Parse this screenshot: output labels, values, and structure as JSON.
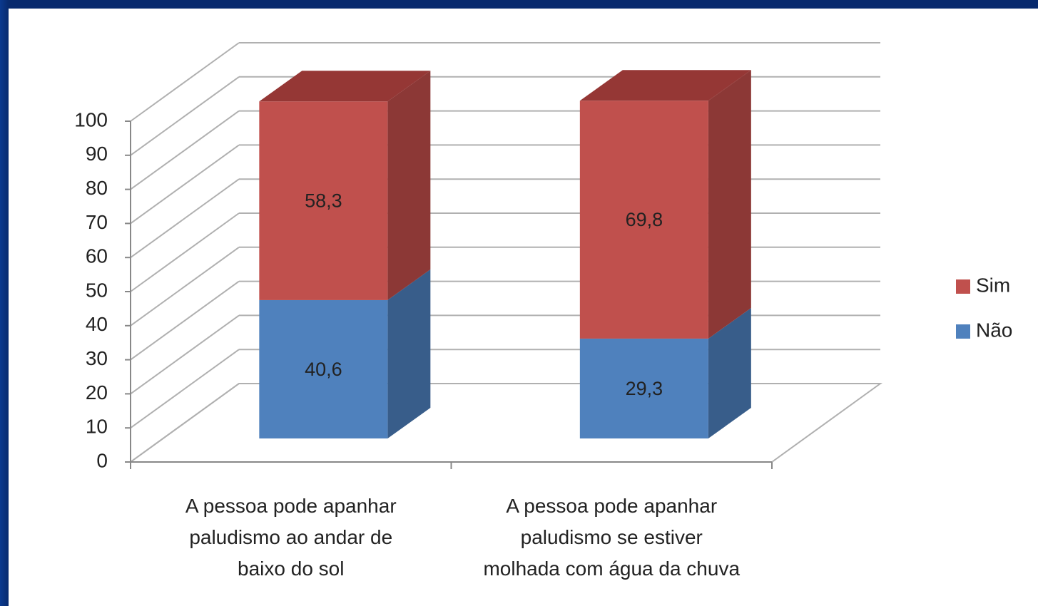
{
  "chart_data": {
    "type": "bar3d_stacked",
    "categories": [
      "A pessoa pode apanhar\npaludismo ao andar de\nbaixo do sol",
      "A pessoa pode apanhar\npaludismo se estiver\nmolhada com água da chuva"
    ],
    "series": [
      {
        "name": "Não",
        "color": "#4f81bd",
        "side": "#385d8a",
        "top": "#41689a",
        "values": [
          40.6,
          29.3
        ],
        "value_labels": [
          "40,6",
          "29,3"
        ]
      },
      {
        "name": "Sim",
        "color": "#c0504d",
        "side": "#8c3836",
        "top": "#953735",
        "values": [
          58.3,
          69.8
        ],
        "value_labels": [
          "58,3",
          "69,8"
        ]
      }
    ],
    "ylim": [
      0,
      100
    ],
    "yticks": [
      0,
      10,
      20,
      30,
      40,
      50,
      60,
      70,
      80,
      90,
      100
    ],
    "grid": true,
    "legend": "right"
  }
}
